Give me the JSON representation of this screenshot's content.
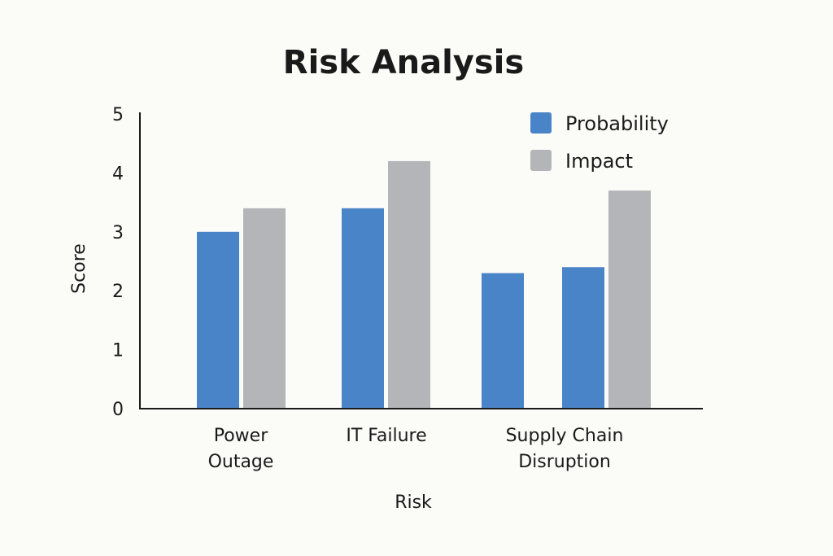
{
  "chart_data": {
    "type": "bar",
    "title": "Risk Analysis",
    "xlabel": "Risk",
    "ylabel": "Score",
    "ylim": [
      0,
      5
    ],
    "yticks": [
      0,
      1,
      2,
      3,
      4,
      5
    ],
    "grid": false,
    "legend_position": "top-right",
    "groups": [
      {
        "label_lines": [
          "Power",
          "Outage"
        ],
        "bars": [
          {
            "series": "Probability",
            "value": 3.0
          },
          {
            "series": "Impact",
            "value": 3.4
          }
        ]
      },
      {
        "label_lines": [
          "IT Failure"
        ],
        "bars": [
          {
            "series": "Probability",
            "value": 3.4
          },
          {
            "series": "Impact",
            "value": 4.2
          }
        ]
      },
      {
        "label_lines": [
          "Supply Chain",
          "Disruption"
        ],
        "bars": [
          {
            "series": "Probability",
            "value": 2.3
          },
          {
            "series": "Probability",
            "value": 2.4
          },
          {
            "series": "Impact",
            "value": 3.7
          }
        ]
      }
    ],
    "series": [
      {
        "name": "Probability",
        "color": "#4a84c8"
      },
      {
        "name": "Impact",
        "color": "#b4b5b8"
      }
    ]
  }
}
